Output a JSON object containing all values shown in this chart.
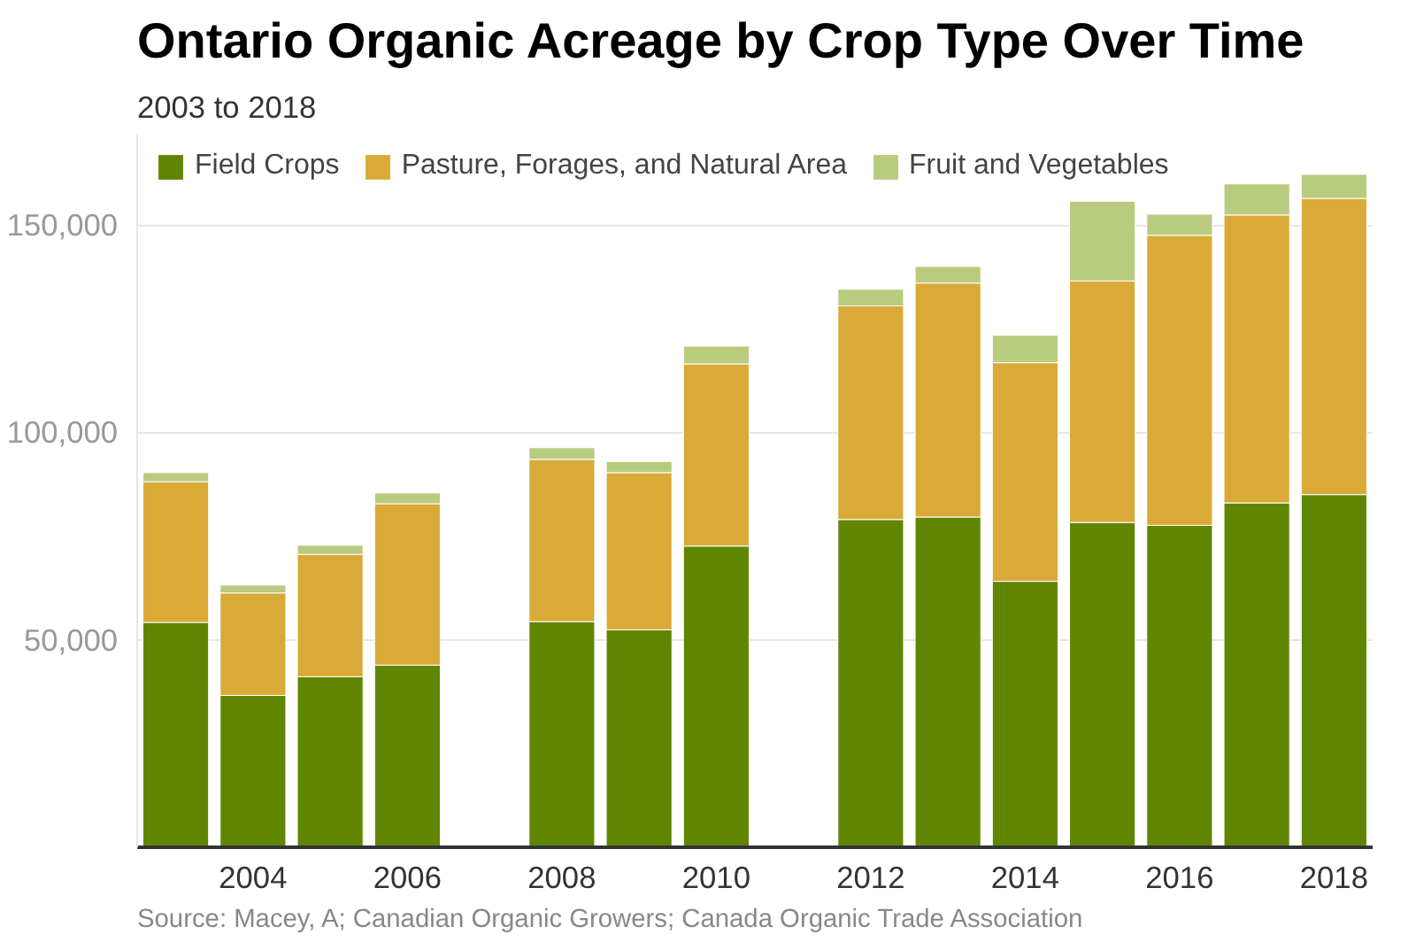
{
  "chart_data": {
    "type": "bar",
    "title": "Ontario Organic Acreage by Crop Type Over Time",
    "subtitle": "2003 to 2018",
    "x": [
      2003,
      2004,
      2005,
      2006,
      2008,
      2009,
      2010,
      2012,
      2013,
      2014,
      2015,
      2016,
      2017,
      2018
    ],
    "stacked": true,
    "series": [
      {
        "name": "Field Crops",
        "color": "#608500",
        "values": [
          54200,
          36600,
          41100,
          43900,
          54400,
          52400,
          72600,
          79000,
          79600,
          64100,
          78300,
          77600,
          83000,
          85000
        ]
      },
      {
        "name": "Pasture, Forages, and Natural Area",
        "color": "#d9aa37",
        "values": [
          33900,
          24700,
          29500,
          38900,
          39100,
          37900,
          43900,
          51500,
          56400,
          52700,
          58200,
          69900,
          69400,
          71400
        ]
      },
      {
        "name": "Fruit and Vegetables",
        "color": "#b9cb7f",
        "values": [
          2200,
          1900,
          2200,
          2600,
          2800,
          2700,
          4300,
          4000,
          4000,
          6600,
          19200,
          5100,
          7500,
          5800
        ]
      }
    ],
    "xlim": [
      2002.5,
      2018.5
    ],
    "xticks": [
      2004,
      2006,
      2008,
      2010,
      2012,
      2014,
      2016,
      2018
    ],
    "ylim": [
      0,
      172000
    ],
    "yticks": [
      {
        "value": 50000,
        "label": "50,000"
      },
      {
        "value": 100000,
        "label": "100,000"
      },
      {
        "value": 150000,
        "label": "150,000"
      }
    ],
    "grid": "y",
    "legend": "top",
    "annotations": [
      "Source: Macey, A; Canadian Organic Growers; Canada Organic Trade Association"
    ]
  }
}
